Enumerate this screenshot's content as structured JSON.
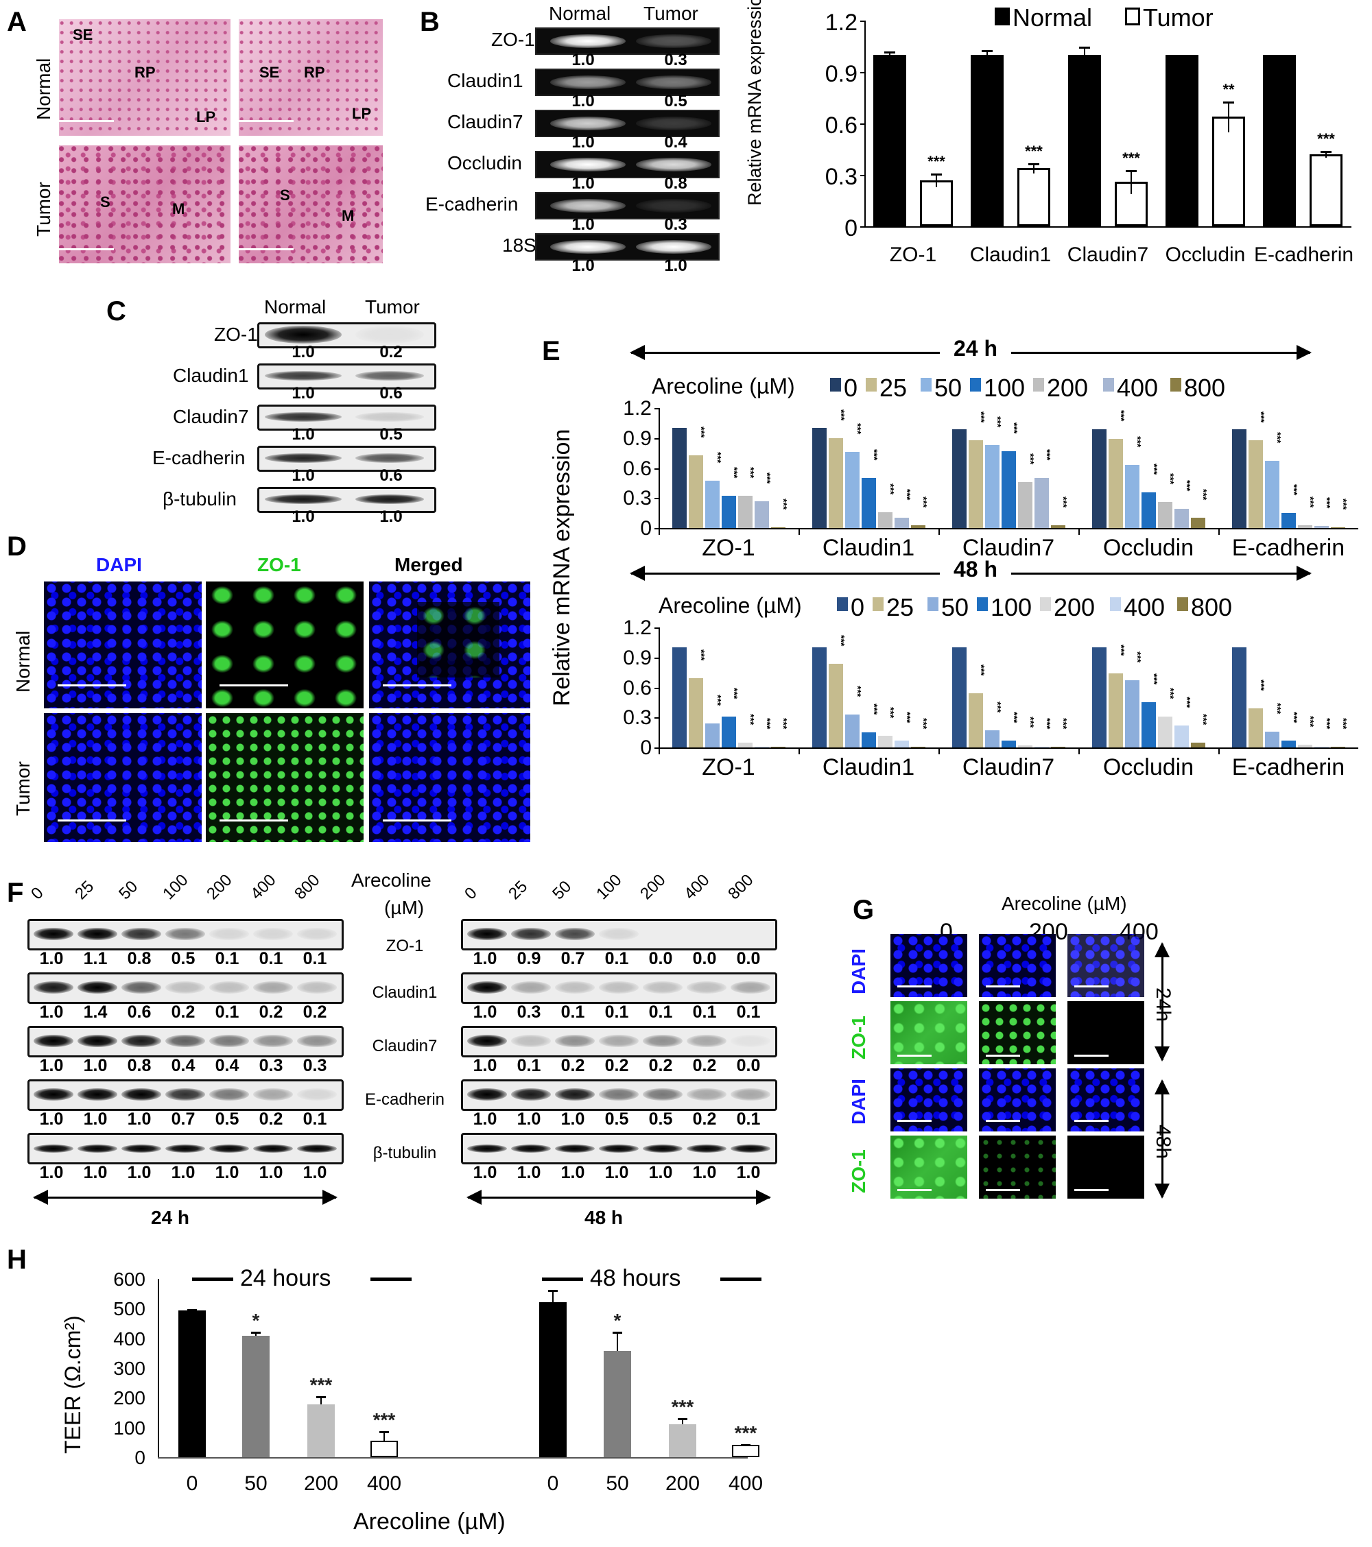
{
  "panels": {
    "A": {
      "label": "A",
      "row_labels": [
        "Normal",
        "Tumor"
      ],
      "annotations": {
        "normal_left": [
          "SE",
          "RP",
          "LP"
        ],
        "normal_right": [
          "SE",
          "RP",
          "LP"
        ],
        "tumor_left": [
          "S",
          "M"
        ],
        "tumor_right": [
          "S",
          "M"
        ]
      }
    },
    "B": {
      "label": "B",
      "gel": {
        "columns": [
          "Normal",
          "Tumor"
        ],
        "rows": [
          {
            "name": "ZO-1",
            "values": [
              "1.0",
              "0.3"
            ]
          },
          {
            "name": "Claudin1",
            "values": [
              "1.0",
              "0.5"
            ]
          },
          {
            "name": "Claudin7",
            "values": [
              "1.0",
              "0.4"
            ]
          },
          {
            "name": "Occludin",
            "values": [
              "1.0",
              "0.8"
            ]
          },
          {
            "name": "E-cadherin",
            "values": [
              "1.0",
              "0.3"
            ]
          },
          {
            "name": "18S",
            "values": [
              "1.0",
              "1.0"
            ]
          }
        ]
      }
    },
    "C": {
      "label": "C",
      "columns": [
        "Normal",
        "Tumor"
      ],
      "rows": [
        {
          "name": "ZO-1",
          "values": [
            "1.0",
            "0.2"
          ]
        },
        {
          "name": "Claudin1",
          "values": [
            "1.0",
            "0.6"
          ]
        },
        {
          "name": "Claudin7",
          "values": [
            "1.0",
            "0.5"
          ]
        },
        {
          "name": "E-cadherin",
          "values": [
            "1.0",
            "0.6"
          ]
        },
        {
          "name": "β-tubulin",
          "values": [
            "1.0",
            "1.0"
          ]
        }
      ]
    },
    "D": {
      "label": "D",
      "col_labels": [
        "DAPI",
        "ZO-1",
        "Merged"
      ],
      "row_labels": [
        "Normal",
        "Tumor"
      ],
      "colors": {
        "DAPI": "#1a1aff",
        "ZO-1": "#22cc22",
        "Merged": "#000000"
      }
    },
    "E": {
      "label": "E",
      "top_time": "24 h",
      "bottom_time": "48 h",
      "legend_title": "Arecoline (µM)",
      "ylabel": "Relative mRNA expression"
    },
    "F": {
      "label": "F",
      "doses": [
        "0",
        "25",
        "50",
        "100",
        "200",
        "400",
        "800"
      ],
      "arecoline_label_1": "Arecoline",
      "arecoline_label_2": "(µM)",
      "proteins": [
        "ZO-1",
        "Claudin1",
        "Claudin7",
        "E-cadherin",
        "β-tubulin"
      ],
      "h24": {
        "time": "24 h",
        "values": [
          [
            "1.0",
            "1.1",
            "0.8",
            "0.5",
            "0.1",
            "0.1",
            "0.1"
          ],
          [
            "1.0",
            "1.4",
            "0.6",
            "0.2",
            "0.1",
            "0.2",
            "0.2"
          ],
          [
            "1.0",
            "1.0",
            "0.8",
            "0.4",
            "0.4",
            "0.3",
            "0.3"
          ],
          [
            "1.0",
            "1.0",
            "1.0",
            "0.7",
            "0.5",
            "0.2",
            "0.1"
          ],
          [
            "1.0",
            "1.0",
            "1.0",
            "1.0",
            "1.0",
            "1.0",
            "1.0"
          ]
        ]
      },
      "h48": {
        "time": "48 h",
        "values": [
          [
            "1.0",
            "0.9",
            "0.7",
            "0.1",
            "0.0",
            "0.0",
            "0.0"
          ],
          [
            "1.0",
            "0.3",
            "0.1",
            "0.1",
            "0.1",
            "0.1",
            "0.1"
          ],
          [
            "1.0",
            "0.1",
            "0.2",
            "0.2",
            "0.2",
            "0.2",
            "0.0"
          ],
          [
            "1.0",
            "1.0",
            "1.0",
            "0.5",
            "0.5",
            "0.2",
            "0.1"
          ],
          [
            "1.0",
            "1.0",
            "1.0",
            "1.0",
            "1.0",
            "1.0",
            "1.0"
          ]
        ]
      }
    },
    "G": {
      "label": "G",
      "title": "Arecoline (µM)",
      "doses": [
        "0",
        "200",
        "400"
      ],
      "row_labels": [
        "DAPI",
        "ZO-1",
        "DAPI",
        "ZO-1"
      ],
      "time_labels": [
        "24h",
        "48h"
      ]
    },
    "H": {
      "label": "H",
      "group_labels": [
        "24 hours",
        "48 hours"
      ],
      "xlabel": "Arecoline (µM)",
      "ylabel": "TEER (Ω.cm²)"
    }
  },
  "chart_data": [
    {
      "id": "B-chart",
      "type": "bar",
      "title": "",
      "ylabel": "Relative mRNA expression",
      "xlabel": "",
      "ylim": [
        0,
        1.2
      ],
      "yticks": [
        "0",
        "0.3",
        "0.6",
        "0.9",
        "1.2"
      ],
      "categories": [
        "ZO-1",
        "Claudin1",
        "Claudin7",
        "Occludin",
        "E-cadherin"
      ],
      "legend_position": "top",
      "series": [
        {
          "name": "Normal",
          "color": "#000000",
          "values": [
            1.0,
            1.0,
            1.0,
            1.0,
            1.0
          ],
          "errors": [
            0.02,
            0.03,
            0.05,
            0.0,
            0.0
          ]
        },
        {
          "name": "Tumor",
          "color": "#ffffff",
          "values": [
            0.27,
            0.34,
            0.26,
            0.64,
            0.42
          ],
          "errors": [
            0.04,
            0.03,
            0.07,
            0.09,
            0.02
          ]
        }
      ],
      "annotations": [
        "***",
        "***",
        "***",
        "**",
        "***"
      ]
    },
    {
      "id": "E-24h",
      "type": "bar",
      "title": "24 h",
      "ylabel": "Relative mRNA expression",
      "ylim": [
        0,
        1.2
      ],
      "yticks": [
        "0",
        "0.3",
        "0.6",
        "0.9",
        "1.2"
      ],
      "categories": [
        "ZO-1",
        "Claudin1",
        "Claudin7",
        "Occludin",
        "E-cadherin"
      ],
      "legend_title": "Arecoline (µM)",
      "legend_position": "top",
      "series": [
        {
          "name": "0",
          "color": "#243f66",
          "values": [
            1.0,
            1.0,
            0.99,
            0.99,
            0.99
          ]
        },
        {
          "name": "25",
          "color": "#c5bb8e",
          "values": [
            0.73,
            0.9,
            0.88,
            0.89,
            0.88
          ]
        },
        {
          "name": "50",
          "color": "#8db4e2",
          "values": [
            0.47,
            0.76,
            0.83,
            0.63,
            0.67
          ]
        },
        {
          "name": "100",
          "color": "#1f6fc0",
          "values": [
            0.32,
            0.5,
            0.77,
            0.36,
            0.15
          ]
        },
        {
          "name": "200",
          "color": "#bfbfbf",
          "values": [
            0.32,
            0.16,
            0.46,
            0.26,
            0.03
          ]
        },
        {
          "name": "400",
          "color": "#a6b6d2",
          "values": [
            0.27,
            0.1,
            0.5,
            0.19,
            0.02
          ]
        },
        {
          "name": "800",
          "color": "#8b7e45",
          "values": [
            0.01,
            0.03,
            0.03,
            0.1,
            0.01
          ]
        }
      ]
    },
    {
      "id": "E-48h",
      "type": "bar",
      "title": "48 h",
      "ylabel": "Relative mRNA expression",
      "ylim": [
        0,
        1.2
      ],
      "yticks": [
        "0",
        "0.3",
        "0.6",
        "0.9",
        "1.2"
      ],
      "categories": [
        "ZO-1",
        "Claudin1",
        "Claudin7",
        "Occludin",
        "E-cadherin"
      ],
      "legend_title": "Arecoline (µM)",
      "legend_position": "top",
      "series": [
        {
          "name": "0",
          "color": "#2c5186",
          "values": [
            1.0,
            1.0,
            1.0,
            1.0,
            1.0
          ]
        },
        {
          "name": "25",
          "color": "#c5bb8e",
          "values": [
            0.69,
            0.84,
            0.54,
            0.74,
            0.39
          ]
        },
        {
          "name": "50",
          "color": "#8daedb",
          "values": [
            0.24,
            0.33,
            0.17,
            0.67,
            0.16
          ]
        },
        {
          "name": "100",
          "color": "#1f6fc0",
          "values": [
            0.31,
            0.15,
            0.07,
            0.45,
            0.07
          ]
        },
        {
          "name": "200",
          "color": "#d9d9d9",
          "values": [
            0.05,
            0.12,
            0.02,
            0.31,
            0.03
          ]
        },
        {
          "name": "400",
          "color": "#c3d5ef",
          "values": [
            0.01,
            0.07,
            0.01,
            0.22,
            0.01
          ]
        },
        {
          "name": "800",
          "color": "#8b7e45",
          "values": [
            0.01,
            0.01,
            0.01,
            0.05,
            0.01
          ]
        }
      ]
    },
    {
      "id": "H-TEER",
      "type": "bar",
      "title": "",
      "ylabel": "TEER (Ω.cm²)",
      "xlabel": "Arecoline (µM)",
      "ylim": [
        0,
        600
      ],
      "yticks": [
        "0",
        "100",
        "200",
        "300",
        "400",
        "500",
        "600"
      ],
      "groups": [
        "24 hours",
        "48 hours"
      ],
      "categories": [
        "0",
        "50",
        "200",
        "400"
      ],
      "series": [
        {
          "name": "24 hours",
          "values": [
            495,
            408,
            178,
            55
          ],
          "errors": [
            3,
            15,
            28,
            33
          ],
          "annotations": [
            "",
            "*",
            "***",
            "***"
          ]
        },
        {
          "name": "48 hours",
          "values": [
            522,
            358,
            110,
            42
          ],
          "errors": [
            40,
            65,
            22,
            3
          ],
          "annotations": [
            "",
            "*",
            "***",
            "***"
          ]
        }
      ],
      "colors": [
        "#000000",
        "#7f7f7f",
        "#bfbfbf",
        "#ffffff"
      ]
    }
  ]
}
